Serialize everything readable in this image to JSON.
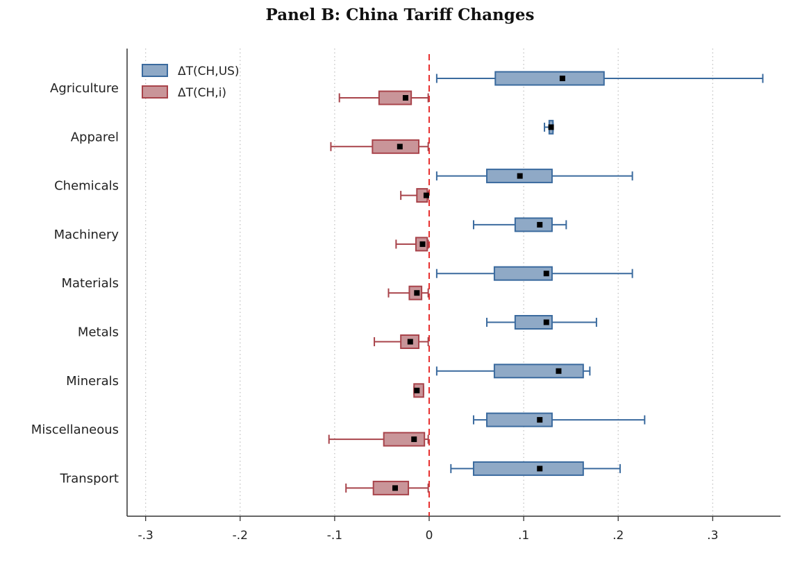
{
  "chart_data": {
    "type": "boxplot",
    "title": "Panel B: China Tariff Changes",
    "orientation": "horizontal",
    "xlim": [
      -0.33,
      0.37
    ],
    "xticks": [
      {
        "value": -0.3,
        "label": "-.3"
      },
      {
        "value": -0.2,
        "label": "-.2"
      },
      {
        "value": -0.1,
        "label": "-.1"
      },
      {
        "value": 0,
        "label": "0"
      },
      {
        "value": 0.1,
        "label": ".1"
      },
      {
        "value": 0.2,
        "label": ".2"
      },
      {
        "value": 0.3,
        "label": ".3"
      }
    ],
    "grid": "vertical dotted",
    "reference_line": {
      "x": 0,
      "color": "#e8302f",
      "style": "dashed"
    },
    "legend_position": "top-left",
    "categories": [
      "Agriculture",
      "Apparel",
      "Chemicals",
      "Machinery",
      "Materials",
      "Metals",
      "Minerals",
      "Miscellaneous",
      "Transport"
    ],
    "series": [
      {
        "name": "ΔT(CH,US)",
        "fill": "#8fa9c6",
        "stroke": "#3a6a9e",
        "boxes": [
          {
            "min": 0.008,
            "q1": 0.07,
            "median": 0.141,
            "q3": 0.185,
            "max": 0.353
          },
          {
            "min": 0.122,
            "q1": 0.127,
            "median": 0.129,
            "q3": 0.131,
            "max": 0.131
          },
          {
            "min": 0.008,
            "q1": 0.061,
            "median": 0.096,
            "q3": 0.13,
            "max": 0.215
          },
          {
            "min": 0.047,
            "q1": 0.091,
            "median": 0.117,
            "q3": 0.13,
            "max": 0.145
          },
          {
            "min": 0.008,
            "q1": 0.069,
            "median": 0.124,
            "q3": 0.13,
            "max": 0.215
          },
          {
            "min": 0.061,
            "q1": 0.091,
            "median": 0.124,
            "q3": 0.13,
            "max": 0.177
          },
          {
            "min": 0.008,
            "q1": 0.069,
            "median": 0.137,
            "q3": 0.163,
            "max": 0.17
          },
          {
            "min": 0.047,
            "q1": 0.061,
            "median": 0.117,
            "q3": 0.13,
            "max": 0.228
          },
          {
            "min": 0.023,
            "q1": 0.047,
            "median": 0.117,
            "q3": 0.163,
            "max": 0.202
          }
        ]
      },
      {
        "name": "ΔT(CH,i)",
        "fill": "#c99599",
        "stroke": "#a8434a",
        "boxes": [
          {
            "min": -0.095,
            "q1": -0.053,
            "median": -0.025,
            "q3": -0.019,
            "max": -0.001
          },
          {
            "min": -0.104,
            "q1": -0.06,
            "median": -0.031,
            "q3": -0.011,
            "max": -0.001
          },
          {
            "min": -0.03,
            "q1": -0.013,
            "median": -0.003,
            "q3": -0.002,
            "max": -0.001
          },
          {
            "min": -0.035,
            "q1": -0.014,
            "median": -0.007,
            "q3": -0.002,
            "max": -0.001
          },
          {
            "min": -0.043,
            "q1": -0.021,
            "median": -0.013,
            "q3": -0.008,
            "max": -0.001
          },
          {
            "min": -0.058,
            "q1": -0.03,
            "median": -0.02,
            "q3": -0.011,
            "max": -0.001
          },
          {
            "min": -0.016,
            "q1": -0.016,
            "median": -0.013,
            "q3": -0.006,
            "max": -0.006
          },
          {
            "min": -0.106,
            "q1": -0.048,
            "median": -0.016,
            "q3": -0.005,
            "max": -0.001
          },
          {
            "min": -0.088,
            "q1": -0.059,
            "median": -0.036,
            "q3": -0.022,
            "max": -0.001
          }
        ]
      }
    ]
  }
}
